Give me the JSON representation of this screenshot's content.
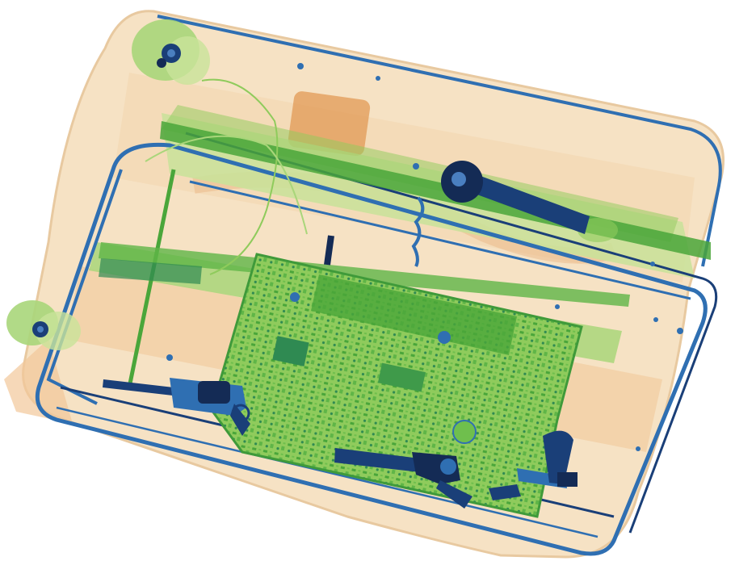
{
  "image": {
    "kind": "x-ray baggage scan",
    "colors": {
      "background": "#ffffff",
      "organic": "#f2b47a",
      "organic_dense": "#e29a55",
      "organic_light": "#f6e2c4",
      "mixed_light": "#c9e39a",
      "mixed": "#8fcb5c",
      "mixed_dense": "#4aa63a",
      "metal": "#2f6fb2",
      "metal_dense": "#1a3f78",
      "metal_dark": "#142b55"
    },
    "objects": [
      {
        "name": "suitcase-shell",
        "material": "organic"
      },
      {
        "name": "trolley-handle-frame",
        "material": "metal"
      },
      {
        "name": "circuit-board",
        "material": "mixed"
      },
      {
        "name": "ratchet-wrench",
        "material": "metal"
      },
      {
        "name": "revolver-left",
        "material": "metal"
      },
      {
        "name": "revolver-center",
        "material": "metal"
      },
      {
        "name": "pistol-right",
        "material": "metal"
      },
      {
        "name": "wheel-top-left",
        "material": "mixed"
      },
      {
        "name": "wheel-bottom-left",
        "material": "mixed"
      },
      {
        "name": "coiled-cable",
        "material": "metal"
      }
    ]
  }
}
